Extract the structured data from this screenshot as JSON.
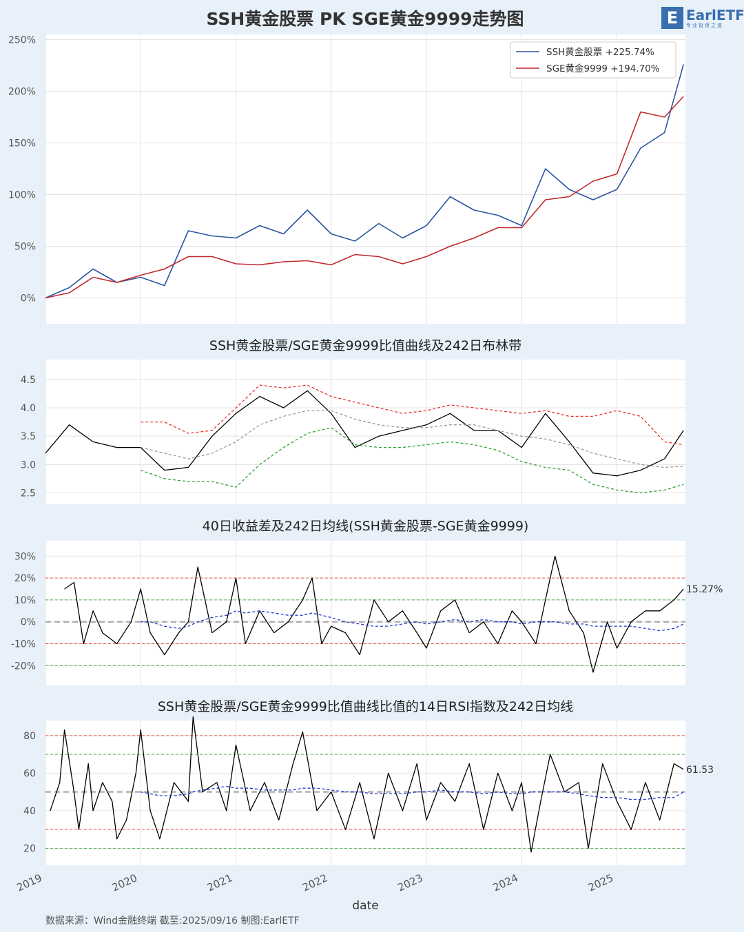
{
  "header": {
    "title": "SSH黄金股票 PK SGE黄金9999走势图",
    "logo_text": "EarlETF",
    "logo_sub": "专业投资之道"
  },
  "footer": {
    "source": "数据来源：Wind金融终端 截至:2025/09/16 制图:EarlETF"
  },
  "colors": {
    "ssh": "#2a55a0",
    "sge": "#c1272d",
    "upper": "#e8312a",
    "middle": "#999999",
    "lower": "#2ca02c",
    "avg": "#2233cc",
    "line": "#000000"
  },
  "x_axis": {
    "label": "date",
    "ticks": [
      "2019",
      "2020",
      "2021",
      "2022",
      "2023",
      "2024",
      "2025"
    ]
  },
  "chart_data": [
    {
      "type": "line",
      "title": "",
      "y_ticks": [
        "250%",
        "200%",
        "150%",
        "100%",
        "50%",
        "0%"
      ],
      "ylim": [
        -25,
        255
      ],
      "grid": true,
      "legend": {
        "position": "top-right",
        "entries": [
          "SSH黄金股票  +225.74%",
          "SGE黄金9999  +194.70%"
        ]
      },
      "x": [
        2019.0,
        2019.25,
        2019.5,
        2019.75,
        2020.0,
        2020.25,
        2020.5,
        2020.75,
        2021.0,
        2021.25,
        2021.5,
        2021.75,
        2022.0,
        2022.25,
        2022.5,
        2022.75,
        2023.0,
        2023.25,
        2023.5,
        2023.75,
        2024.0,
        2024.25,
        2024.5,
        2024.75,
        2025.0,
        2025.25,
        2025.5,
        2025.7
      ],
      "series": [
        {
          "name": "SSH黄金股票",
          "values": [
            0,
            10,
            28,
            15,
            20,
            12,
            65,
            60,
            58,
            70,
            62,
            85,
            62,
            55,
            72,
            58,
            70,
            98,
            85,
            80,
            70,
            125,
            105,
            95,
            105,
            145,
            160,
            226
          ]
        },
        {
          "name": "SGE黄金9999",
          "values": [
            0,
            5,
            20,
            15,
            22,
            28,
            40,
            40,
            33,
            32,
            35,
            36,
            32,
            42,
            40,
            33,
            40,
            50,
            58,
            68,
            68,
            95,
            98,
            113,
            120,
            180,
            175,
            195
          ]
        }
      ]
    },
    {
      "type": "line",
      "title": "SSH黄金股票/SGE黄金9999比值曲线及242日布林带",
      "y_ticks": [
        "4.5",
        "4.0",
        "3.5",
        "3.0",
        "2.5"
      ],
      "ylim": [
        2.3,
        4.85
      ],
      "grid": true,
      "x": [
        2019.0,
        2019.25,
        2019.5,
        2019.75,
        2020.0,
        2020.25,
        2020.5,
        2020.75,
        2021.0,
        2021.25,
        2021.5,
        2021.75,
        2022.0,
        2022.25,
        2022.5,
        2022.75,
        2023.0,
        2023.25,
        2023.5,
        2023.75,
        2024.0,
        2024.25,
        2024.5,
        2024.75,
        2025.0,
        2025.25,
        2025.5,
        2025.7
      ],
      "series": [
        {
          "name": "",
          "values": [
            3.2,
            3.7,
            3.4,
            3.3,
            3.3,
            2.9,
            2.95,
            3.5,
            3.9,
            4.2,
            4.0,
            4.3,
            3.9,
            3.3,
            3.5,
            3.6,
            3.7,
            3.9,
            3.6,
            3.6,
            3.3,
            3.9,
            3.4,
            2.85,
            2.8,
            2.9,
            3.1,
            3.6
          ]
        },
        {
          "name": "",
          "values": [
            null,
            null,
            null,
            null,
            3.75,
            3.75,
            3.55,
            3.6,
            4.0,
            4.4,
            4.35,
            4.4,
            4.2,
            4.1,
            4.0,
            3.9,
            3.95,
            4.05,
            4.0,
            3.95,
            3.9,
            3.95,
            3.85,
            3.85,
            3.95,
            3.85,
            3.4,
            3.35
          ]
        },
        {
          "name": "",
          "values": [
            null,
            null,
            null,
            null,
            3.3,
            3.2,
            3.1,
            3.2,
            3.4,
            3.7,
            3.85,
            3.95,
            3.95,
            3.8,
            3.7,
            3.65,
            3.65,
            3.7,
            3.7,
            3.6,
            3.5,
            3.45,
            3.35,
            3.2,
            3.1,
            3.0,
            2.95,
            2.97
          ]
        },
        {
          "name": "",
          "values": [
            null,
            null,
            null,
            null,
            2.9,
            2.75,
            2.7,
            2.7,
            2.6,
            3.0,
            3.3,
            3.55,
            3.65,
            3.35,
            3.3,
            3.3,
            3.35,
            3.4,
            3.35,
            3.25,
            3.05,
            2.95,
            2.9,
            2.65,
            2.55,
            2.5,
            2.55,
            2.65
          ]
        }
      ]
    },
    {
      "type": "line",
      "title": "40日收益差及242日均线(SSH黄金股票-SGE黄金9999)",
      "y_ticks": [
        "30%",
        "20%",
        "10%",
        "0%",
        "-10%",
        "-20%"
      ],
      "ylim": [
        -29,
        37
      ],
      "grid": true,
      "ref_lines": [
        20,
        10,
        -10,
        -20
      ],
      "last_label": "15.27%",
      "x": [
        2019.2,
        2019.3,
        2019.4,
        2019.5,
        2019.6,
        2019.75,
        2019.9,
        2020.0,
        2020.1,
        2020.25,
        2020.4,
        2020.5,
        2020.6,
        2020.75,
        2020.9,
        2021.0,
        2021.1,
        2021.25,
        2021.4,
        2021.55,
        2021.7,
        2021.8,
        2021.9,
        2022.0,
        2022.15,
        2022.3,
        2022.45,
        2022.6,
        2022.75,
        2022.9,
        2023.0,
        2023.15,
        2023.3,
        2023.45,
        2023.6,
        2023.75,
        2023.9,
        2024.0,
        2024.15,
        2024.25,
        2024.35,
        2024.5,
        2024.65,
        2024.75,
        2024.9,
        2025.0,
        2025.15,
        2025.3,
        2025.45,
        2025.6,
        2025.7
      ],
      "series": [
        {
          "name": "",
          "values": [
            15,
            18,
            -10,
            5,
            -5,
            -10,
            0,
            15,
            -5,
            -15,
            -5,
            0,
            25,
            -5,
            0,
            20,
            -10,
            5,
            -5,
            0,
            10,
            20,
            -10,
            -2,
            -5,
            -15,
            10,
            0,
            5,
            -5,
            -12,
            5,
            10,
            -5,
            0,
            -10,
            5,
            0,
            -10,
            10,
            30,
            5,
            -5,
            -23,
            0,
            -12,
            0,
            5,
            5,
            10,
            15
          ]
        },
        {
          "name": "",
          "values": [
            null,
            null,
            null,
            null,
            null,
            null,
            null,
            0,
            0,
            -2,
            -3,
            -2,
            0,
            2,
            3,
            5,
            4,
            5,
            4,
            3,
            3,
            4,
            3,
            2,
            0,
            -1,
            -2,
            -2,
            -1,
            0,
            -1,
            0,
            1,
            0,
            1,
            0,
            0,
            -1,
            0,
            0,
            0,
            -1,
            -1,
            -2,
            -2,
            -2,
            -2,
            -3,
            -4,
            -3,
            -1
          ]
        }
      ]
    },
    {
      "type": "line",
      "title": "SSH黄金股票/SGE黄金9999比值曲线比值的14日RSI指数及242日均线",
      "y_ticks": [
        "80",
        "60",
        "40",
        "20"
      ],
      "ylim": [
        11,
        88
      ],
      "grid": true,
      "ref_lines": [
        80,
        70,
        30,
        20
      ],
      "last_label": "61.53",
      "x": [
        2019.05,
        2019.15,
        2019.2,
        2019.3,
        2019.35,
        2019.45,
        2019.5,
        2019.6,
        2019.7,
        2019.75,
        2019.85,
        2019.95,
        2020.0,
        2020.1,
        2020.2,
        2020.35,
        2020.5,
        2020.55,
        2020.65,
        2020.8,
        2020.9,
        2021.0,
        2021.15,
        2021.3,
        2021.45,
        2021.6,
        2021.7,
        2021.85,
        2022.0,
        2022.15,
        2022.3,
        2022.45,
        2022.6,
        2022.75,
        2022.9,
        2023.0,
        2023.15,
        2023.3,
        2023.45,
        2023.6,
        2023.75,
        2023.9,
        2024.0,
        2024.1,
        2024.2,
        2024.3,
        2024.45,
        2024.6,
        2024.7,
        2024.85,
        2025.0,
        2025.15,
        2025.3,
        2025.45,
        2025.6,
        2025.7
      ],
      "series": [
        {
          "name": "",
          "values": [
            40,
            55,
            83,
            50,
            30,
            65,
            40,
            55,
            45,
            25,
            35,
            60,
            83,
            40,
            25,
            55,
            45,
            90,
            50,
            55,
            40,
            75,
            40,
            55,
            35,
            65,
            82,
            40,
            50,
            30,
            55,
            25,
            60,
            40,
            65,
            35,
            55,
            45,
            65,
            30,
            60,
            40,
            55,
            18,
            45,
            70,
            50,
            55,
            20,
            65,
            45,
            30,
            55,
            35,
            65,
            62
          ]
        },
        {
          "name": "",
          "values": [
            null,
            null,
            null,
            null,
            null,
            null,
            null,
            null,
            null,
            null,
            null,
            null,
            50,
            49,
            48,
            48,
            49,
            50,
            51,
            52,
            53,
            52,
            52,
            51,
            51,
            51,
            52,
            52,
            51,
            50,
            50,
            49,
            49,
            49,
            50,
            50,
            51,
            50,
            50,
            49,
            50,
            49,
            49,
            50,
            50,
            50,
            50,
            49,
            48,
            47,
            47,
            46,
            46,
            47,
            47,
            50
          ]
        }
      ]
    }
  ]
}
